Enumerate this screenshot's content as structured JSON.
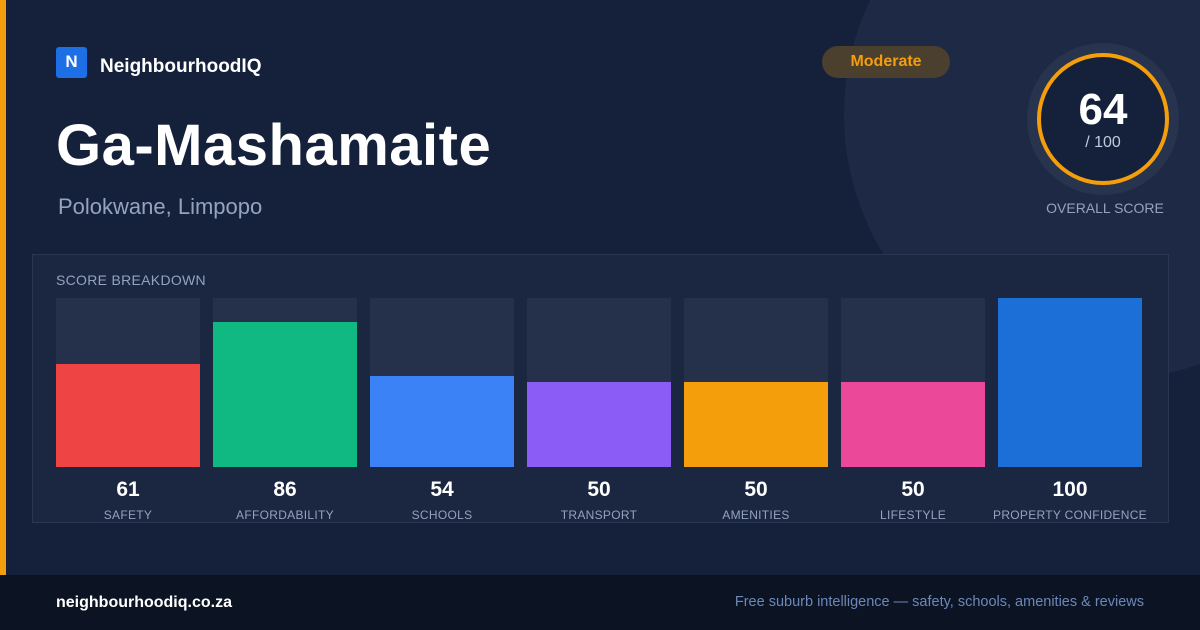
{
  "brand": {
    "logo_letter": "N",
    "name": "NeighbourhoodIQ"
  },
  "suburb": {
    "name": "Ga-Mashamaite",
    "location": "Polokwane, Limpopo"
  },
  "rating_badge": {
    "label": "Moderate",
    "color": "#f59e0b"
  },
  "overall": {
    "score": "64",
    "max": "/ 100",
    "caption": "OVERALL SCORE",
    "fraction": 0.64
  },
  "breakdown": {
    "title": "SCORE BREAKDOWN",
    "items": [
      {
        "label": "SAFETY",
        "value": "61",
        "score": 61,
        "color": "#ef4444"
      },
      {
        "label": "AFFORDABILITY",
        "value": "86",
        "score": 86,
        "color": "#10b981"
      },
      {
        "label": "SCHOOLS",
        "value": "54",
        "score": 54,
        "color": "#3b82f6"
      },
      {
        "label": "TRANSPORT",
        "value": "50",
        "score": 50,
        "color": "#8b5cf6"
      },
      {
        "label": "AMENITIES",
        "value": "50",
        "score": 50,
        "color": "#f59e0b"
      },
      {
        "label": "LIFESTYLE",
        "value": "50",
        "score": 50,
        "color": "#ec4899"
      },
      {
        "label": "PROPERTY CONFIDENCE",
        "value": "100",
        "score": 100,
        "color": "#1d6fd8"
      }
    ]
  },
  "footer": {
    "site": "neighbourhoodiq.co.za",
    "tagline": "Free suburb intelligence — safety, schools, amenities & reviews"
  }
}
